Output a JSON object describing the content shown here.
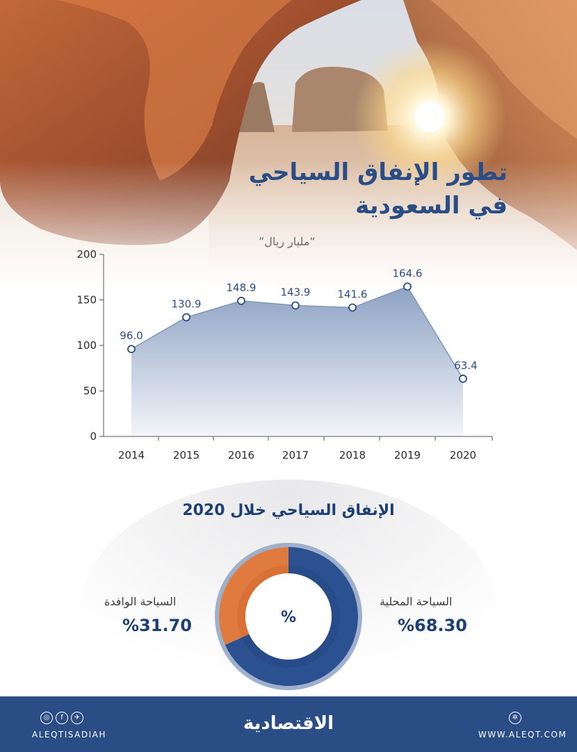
{
  "header": {
    "title_line1": "تطور الإنفاق السياحي",
    "title_line2": "في السعودية",
    "unit": "“مليار ريال”"
  },
  "chart_data": [
    {
      "type": "area",
      "title": "تطور الإنفاق السياحي في السعودية",
      "ylabel": "“مليار ريال”",
      "x": [
        "2014",
        "2015",
        "2016",
        "2017",
        "2018",
        "2019",
        "2020"
      ],
      "series": [
        {
          "values": [
            96.0,
            130.9,
            148.9,
            143.9,
            141.6,
            164.6,
            63.4
          ]
        }
      ],
      "yticks": [
        0,
        50,
        100,
        150,
        200
      ],
      "ylim": [
        0,
        200
      ],
      "grid": false,
      "colors": {
        "line": "#7f95b8",
        "fill_top": "#8da2c3",
        "fill_bottom": "#f3f5f9",
        "point": "#2a4d86",
        "label": "#2a4d86"
      }
    },
    {
      "type": "pie",
      "title": "الإنفاق السياحي خلال 2020",
      "center_label": "%",
      "slices": [
        {
          "name": "السياحة المحلية",
          "value": 68.3,
          "label": "%68.30",
          "color": "#2b5190"
        },
        {
          "name": "السياحة الوافدة",
          "value": 31.7,
          "label": "%31.70",
          "color": "#e07b40"
        }
      ]
    }
  ],
  "footer": {
    "social_icons": [
      "instagram-icon",
      "facebook-icon",
      "twitter-icon"
    ],
    "handle": "ALEQTISADIAH",
    "brand": "الاقتصادية",
    "website": "WWW.ALEQT.COM",
    "web_icon": "globe-icon",
    "bar_color": "#2a4d86"
  }
}
